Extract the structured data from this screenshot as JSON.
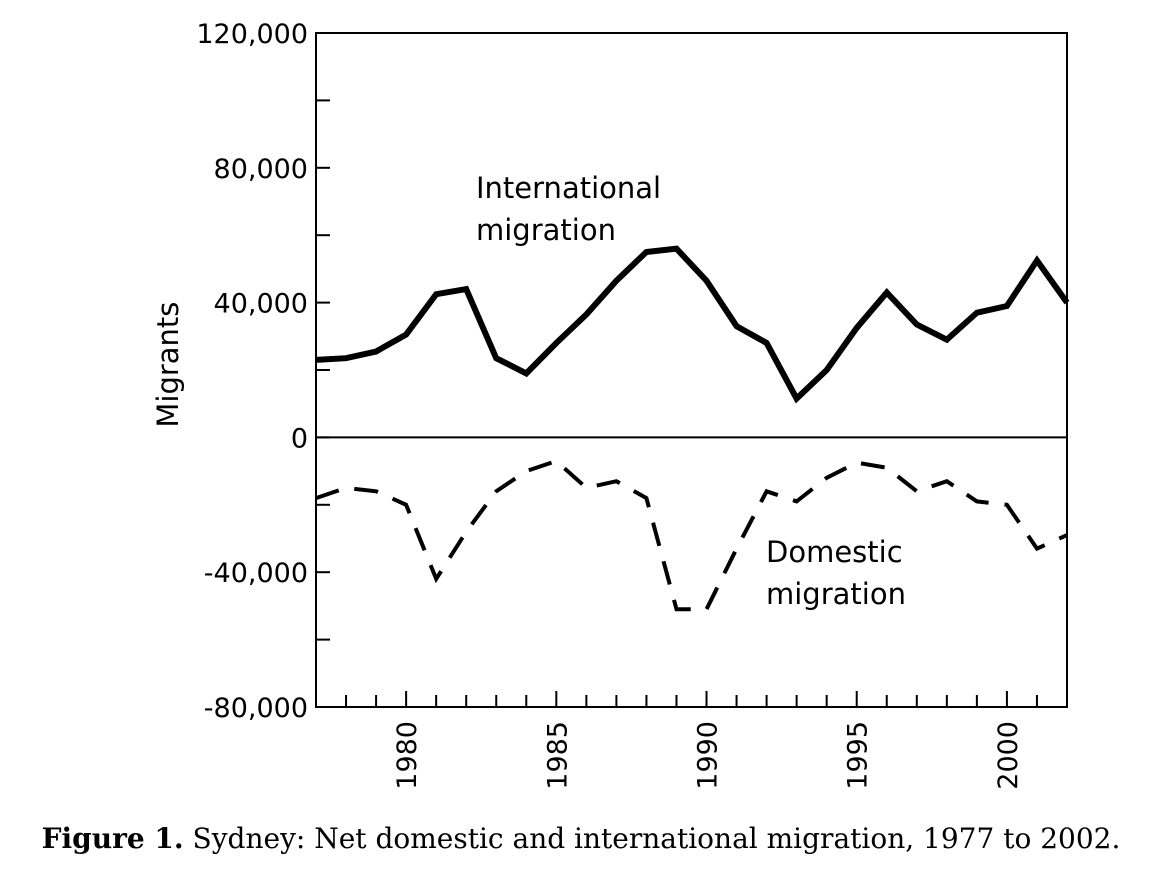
{
  "chart_data": {
    "type": "line",
    "title": "",
    "xlabel": "",
    "ylabel": "Migrants",
    "xlim": [
      1977,
      2002
    ],
    "ylim": [
      -80000,
      120000
    ],
    "x_ticks": [
      1980,
      1985,
      1990,
      1995,
      2000
    ],
    "x_minor_ticks": [
      1978,
      1979,
      1980,
      1981,
      1982,
      1983,
      1984,
      1985,
      1986,
      1987,
      1988,
      1989,
      1990,
      1991,
      1992,
      1993,
      1994,
      1995,
      1996,
      1997,
      1998,
      1999,
      2000,
      2001
    ],
    "y_ticks": [
      120000,
      80000,
      40000,
      0,
      -40000,
      -80000
    ],
    "y_tick_labels": [
      "120,000",
      "80,000",
      "40,000",
      "0",
      "-40,000",
      "-80,000"
    ],
    "y_minor_ticks": [
      100000,
      60000,
      20000,
      -20000,
      -60000
    ],
    "x_tick_labels": [
      "1980",
      "1985",
      "1990",
      "1995",
      "2000"
    ],
    "grid": false,
    "series": [
      {
        "name": "International migration",
        "label_lines": [
          "International",
          "migration"
        ],
        "style": "solid",
        "color": "#000000",
        "x": [
          1977,
          1978,
          1979,
          1980,
          1981,
          1982,
          1983,
          1984,
          1985,
          1986,
          1987,
          1988,
          1989,
          1990,
          1991,
          1992,
          1993,
          1994,
          1995,
          1996,
          1997,
          1998,
          1999,
          2000,
          2001,
          2002
        ],
        "values": [
          23000,
          23500,
          25500,
          30500,
          42500,
          44000,
          23500,
          19000,
          28000,
          36500,
          46500,
          55000,
          56000,
          46500,
          33000,
          28000,
          11500,
          20000,
          32500,
          43000,
          33500,
          29000,
          37000,
          39000,
          52500,
          40000
        ]
      },
      {
        "name": "Domestic migration",
        "label_lines": [
          "Domestic",
          "migration"
        ],
        "style": "dashed",
        "color": "#000000",
        "x": [
          1977,
          1978,
          1979,
          1980,
          1981,
          1982,
          1983,
          1984,
          1985,
          1986,
          1987,
          1988,
          1989,
          1990,
          1991,
          1992,
          1993,
          1994,
          1995,
          1996,
          1997,
          1998,
          1999,
          2000,
          2001,
          2002
        ],
        "values": [
          -18000,
          -15000,
          -16000,
          -20000,
          -42000,
          -28000,
          -16000,
          -10000,
          -7000,
          -15000,
          -13000,
          -18000,
          -51000,
          -51000,
          -33000,
          -16000,
          -19000,
          -12000,
          -7500,
          -9000,
          -16000,
          -13000,
          -19000,
          -20000,
          -33000,
          -29000
        ]
      }
    ]
  },
  "caption": {
    "label": "Figure 1.",
    "text": " Sydney: Net domestic and international migration, 1977 to 2002."
  }
}
